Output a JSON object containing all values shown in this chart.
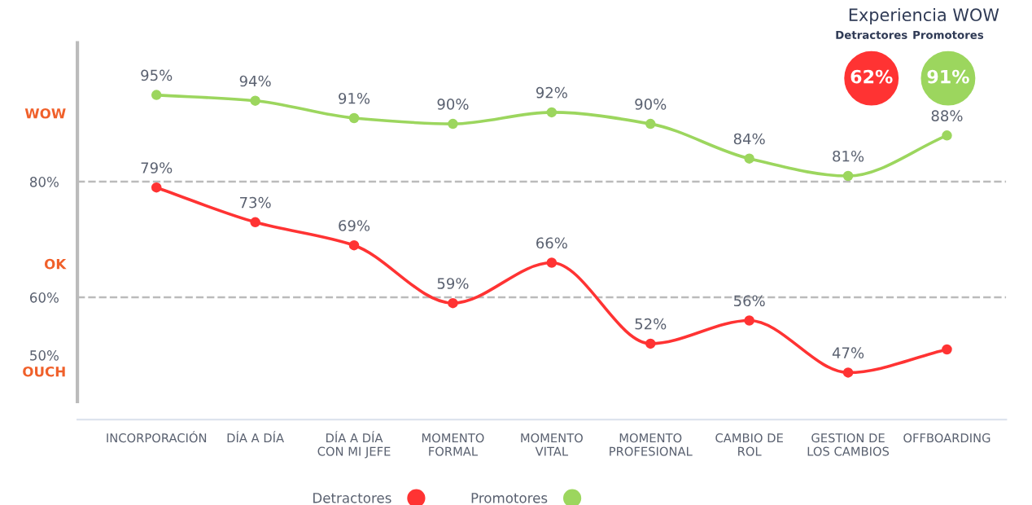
{
  "chart_data": [
    {
      "type": "line",
      "categories": [
        "INCORPORACIÓN",
        "DÍA A DÍA",
        "DÍA A DÍA CON MI JEFE",
        "MOMENTO FORMAL",
        "MOMENTO VITAL",
        "MOMENTO PROFESIONAL",
        "CAMBIO DE ROL",
        "GESTION DE LOS CAMBIOS",
        "OFFBOARDING"
      ],
      "series": [
        {
          "name": "Detractores",
          "color": "#ff3333",
          "values": [
            79,
            73,
            69,
            59,
            66,
            52,
            56,
            47,
            51
          ],
          "value_labels": [
            "79%",
            "73%",
            "69%",
            "59%",
            "66%",
            "52%",
            "56%",
            "47%",
            null
          ]
        },
        {
          "name": "Promotores",
          "color": "#9cd65e",
          "values": [
            95,
            94,
            91,
            90,
            92,
            90,
            84,
            81,
            88
          ],
          "value_labels": [
            "95%",
            "94%",
            "91%",
            "90%",
            "92%",
            "90%",
            "84%",
            "81%",
            "88%"
          ]
        }
      ],
      "ylim": [
        42,
        104
      ],
      "yticks": [
        {
          "value": 50,
          "label": "50%"
        },
        {
          "value": 60,
          "label": "60%"
        },
        {
          "value": 80,
          "label": "80%"
        }
      ],
      "ref_lines": [
        {
          "axis": "y",
          "value": 80,
          "color": "#bbbbbb",
          "line_style": "dashed"
        },
        {
          "axis": "y",
          "value": 60,
          "color": "#bbbbbb",
          "line_style": "dashed"
        }
      ],
      "annotations": [
        "WOW",
        "OK",
        "OUCH"
      ],
      "marker": "circle",
      "legend": "bottom",
      "grid": false
    },
    {
      "type": "other",
      "title": "Experiencia WOW",
      "annotations": [
        "Detractores",
        "62%",
        "Promotores",
        "91%"
      ],
      "colors": [
        "#ff3333",
        "#9cd65e"
      ]
    }
  ]
}
